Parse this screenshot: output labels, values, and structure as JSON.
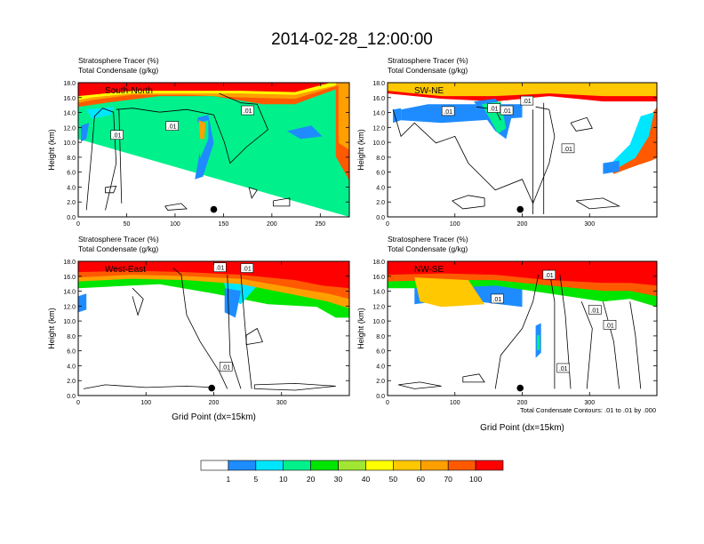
{
  "title": "2014-02-28_12:00:00",
  "footnote": "Total Condensate Contours: .01 to .01 by .000",
  "colorbar": {
    "colors": [
      "#ffffff",
      "#1e8cff",
      "#00e6ff",
      "#00f08c",
      "#00e600",
      "#a0e632",
      "#ffff00",
      "#ffc800",
      "#ffa000",
      "#ff5a00",
      "#ff0000"
    ],
    "labels": [
      "1",
      "5",
      "10",
      "20",
      "30",
      "40",
      "50",
      "60",
      "70",
      "100"
    ]
  },
  "chart_data": [
    {
      "type": "contour",
      "label": "South-North",
      "subtitle_line1": "Stratosphere Tracer   (%)",
      "subtitle_line2": "Total Condensate   (g/kg)",
      "ylabel": "Height (km)",
      "xlabel": "",
      "xlim": [
        0,
        280
      ],
      "ylim": [
        0,
        18
      ],
      "xticks": [
        "0",
        "50",
        "100",
        "150",
        "200",
        "250"
      ],
      "xtick_values": [
        0,
        50,
        100,
        150,
        200,
        250
      ],
      "yticks": [
        "0.0",
        "2.0",
        "4.0",
        "6.0",
        "8.0",
        "10.0",
        "12.0",
        "14.0",
        "16.0",
        "18.0"
      ],
      "contour_labels": [
        ".01",
        ".01",
        ".01"
      ],
      "contour_label_positions": [
        [
          40,
          11.0
        ],
        [
          97,
          12.2
        ],
        [
          175,
          14.3
        ]
      ],
      "marker": [
        140,
        1.0
      ]
    },
    {
      "type": "contour",
      "label": "SW-NE",
      "subtitle_line1": "Stratosphere Tracer   (%)",
      "subtitle_line2": "Total Condensate   (g/kg)",
      "ylabel": "Height (km)",
      "xlabel": "",
      "xlim": [
        0,
        400
      ],
      "ylim": [
        0,
        18
      ],
      "xticks": [
        "0",
        "100",
        "200",
        "300"
      ],
      "xtick_values": [
        0,
        100,
        200,
        300
      ],
      "yticks": [
        "0.0",
        "2.0",
        "4.0",
        "6.0",
        "8.0",
        "10.0",
        "12.0",
        "14.0",
        "16.0",
        "18.0"
      ],
      "contour_labels": [
        ".01",
        ".01",
        ".01",
        ".01",
        ".01"
      ],
      "contour_label_positions": [
        [
          90,
          14.2
        ],
        [
          158,
          14.6
        ],
        [
          177,
          14.3
        ],
        [
          207,
          15.6
        ],
        [
          268,
          9.2
        ]
      ],
      "marker": [
        197,
        1.0
      ]
    },
    {
      "type": "contour",
      "label": "West-East",
      "subtitle_line1": "Stratosphere Tracer   (%)",
      "subtitle_line2": "Total Condensate   (g/kg)",
      "ylabel": "Height (km)",
      "xlabel": "Grid Point (dx=15km)",
      "xlim": [
        0,
        400
      ],
      "ylim": [
        0,
        18
      ],
      "xticks": [
        "0",
        "100",
        "200",
        "300"
      ],
      "xtick_values": [
        0,
        100,
        200,
        300
      ],
      "yticks": [
        "0.0",
        "2.0",
        "4.0",
        "6.0",
        "8.0",
        "10.0",
        "12.0",
        "14.0",
        "16.0",
        "18.0"
      ],
      "contour_labels": [
        ".01",
        ".01",
        ".01"
      ],
      "contour_label_positions": [
        [
          209,
          17.2
        ],
        [
          249,
          17.1
        ],
        [
          218,
          3.9
        ]
      ],
      "marker": [
        197,
        1.0
      ]
    },
    {
      "type": "contour",
      "label": "NW-SE",
      "subtitle_line1": "Stratosphere Tracer   (%)",
      "subtitle_line2": "Total Condensate   (g/kg)",
      "ylabel": "Height (km)",
      "xlabel": "Grid Point (dx=15km)",
      "xlim": [
        0,
        400
      ],
      "ylim": [
        0,
        18
      ],
      "xticks": [
        "0",
        "100",
        "200",
        "300"
      ],
      "xtick_values": [
        0,
        100,
        200,
        300
      ],
      "yticks": [
        "0.0",
        "2.0",
        "4.0",
        "6.0",
        "8.0",
        "10.0",
        "12.0",
        "14.0",
        "16.0",
        "18.0"
      ],
      "contour_labels": [
        ".01",
        ".01",
        ".01",
        ".01",
        ".01"
      ],
      "contour_label_positions": [
        [
          163,
          13.0
        ],
        [
          240,
          16.2
        ],
        [
          308,
          11.5
        ],
        [
          330,
          9.5
        ],
        [
          261,
          3.7
        ]
      ],
      "marker": [
        197,
        1.0
      ]
    }
  ]
}
